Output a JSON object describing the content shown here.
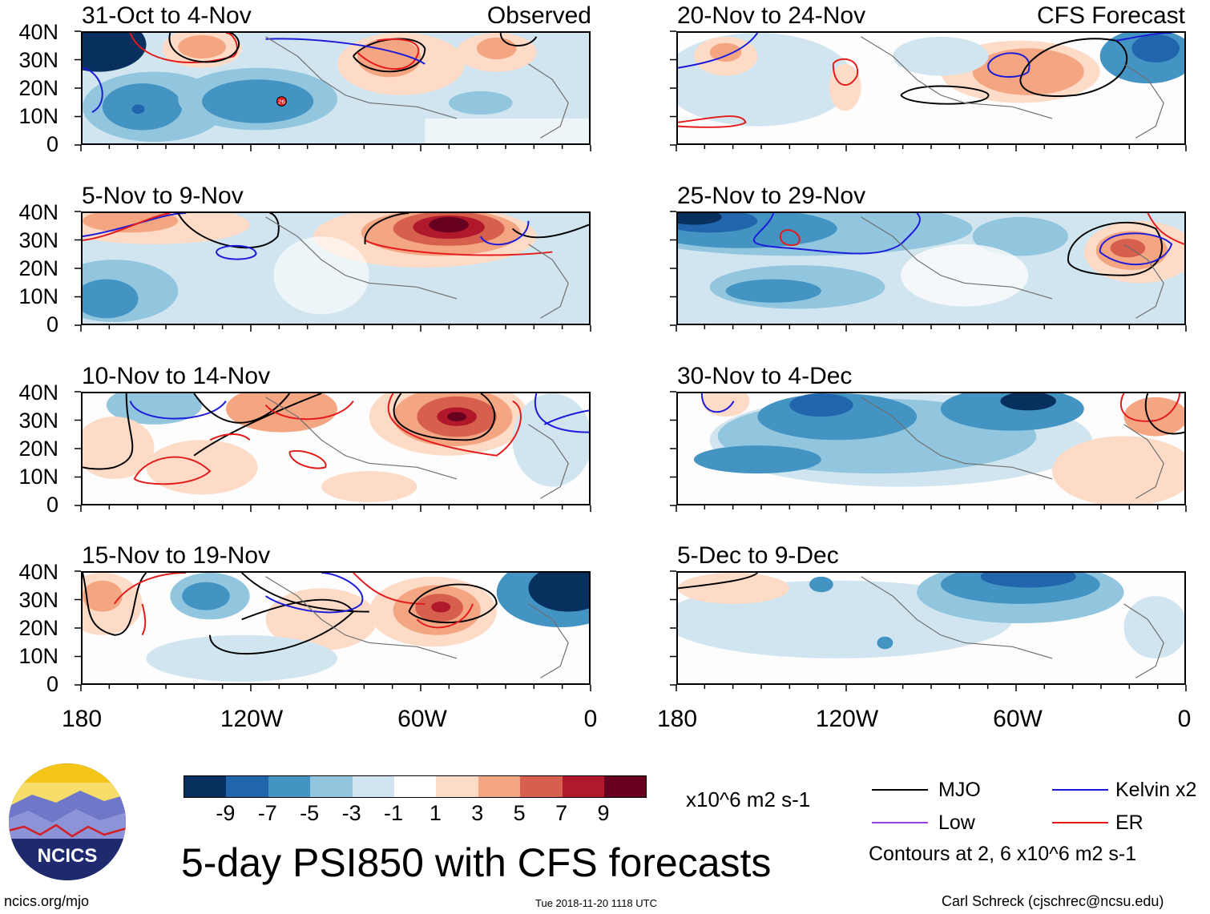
{
  "axes": {
    "lat_labels": [
      "40N",
      "30N",
      "20N",
      "10N",
      "0"
    ],
    "lon_labels": [
      "180",
      "120W",
      "60W",
      "0"
    ]
  },
  "panels": [
    {
      "title": "31-Oct to 4-Nov",
      "tag": "Observed",
      "storm_label": "26"
    },
    {
      "title": "5-Nov to 9-Nov",
      "tag": ""
    },
    {
      "title": "10-Nov to 14-Nov",
      "tag": ""
    },
    {
      "title": "15-Nov to 19-Nov",
      "tag": ""
    },
    {
      "title": "20-Nov to 24-Nov",
      "tag": "CFS Forecast"
    },
    {
      "title": "25-Nov to 29-Nov",
      "tag": ""
    },
    {
      "title": "30-Nov to 4-Dec",
      "tag": ""
    },
    {
      "title": "5-Dec to 9-Dec",
      "tag": ""
    }
  ],
  "colorbar": {
    "colors": [
      "#08305e",
      "#2166ac",
      "#4393c3",
      "#92c5de",
      "#d1e5f0",
      "#ffffff",
      "#fddbc7",
      "#f4a582",
      "#d6604d",
      "#b2182b",
      "#67001f"
    ],
    "labels": [
      "-9",
      "-7",
      "-5",
      "-3",
      "-1",
      "1",
      "3",
      "5",
      "7",
      "9"
    ],
    "units": "x10^6 m2 s-1"
  },
  "legend": {
    "items": [
      {
        "label": "MJO",
        "color": "#000000"
      },
      {
        "label": "Kelvin x2",
        "color": "#1a1adb"
      },
      {
        "label": "Low",
        "color": "#9b3fe0"
      },
      {
        "label": "ER",
        "color": "#e41a1a"
      }
    ],
    "note": "Contours at 2, 6 x10^6 m2 s-1"
  },
  "logo": {
    "text": "NCICS"
  },
  "main_title": "5-day PSI850 with CFS forecasts",
  "footer": {
    "url": "ncics.org/mjo",
    "timestamp": "Tue 2018-11-20 1118 UTC",
    "credit": "Carl Schreck (cjschrec@ncsu.edu)"
  }
}
